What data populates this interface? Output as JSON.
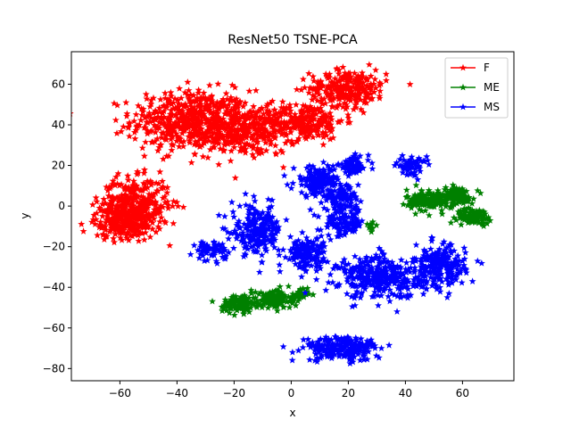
{
  "chart_data": {
    "type": "scatter",
    "title": "ResNet50 TSNE-PCA",
    "xlabel": "x",
    "ylabel": "y",
    "xlim": [
      -77,
      78
    ],
    "ylim": [
      -86,
      76
    ],
    "xticks": [
      -60,
      -40,
      -20,
      0,
      20,
      40,
      60
    ],
    "yticks": [
      -80,
      -60,
      -40,
      -20,
      0,
      20,
      40,
      60
    ],
    "grid": false,
    "legend_position": "top-right",
    "marker": "star",
    "series": [
      {
        "name": "F",
        "color": "#ff0000",
        "clusters": [
          {
            "cx": -35,
            "cy": 42,
            "sx": 14,
            "sy": 10,
            "n": 520
          },
          {
            "cx": -15,
            "cy": 37,
            "sx": 12,
            "sy": 8,
            "n": 320
          },
          {
            "cx": 5,
            "cy": 42,
            "sx": 9,
            "sy": 6,
            "n": 200
          },
          {
            "cx": 20,
            "cy": 58,
            "sx": 9,
            "sy": 6,
            "n": 260
          },
          {
            "cx": -55,
            "cy": 0,
            "sx": 8,
            "sy": 9,
            "n": 380
          },
          {
            "cx": -60,
            "cy": -8,
            "sx": 6,
            "sy": 5,
            "n": 160
          }
        ]
      },
      {
        "name": "ME",
        "color": "#008000",
        "clusters": [
          {
            "cx": 48,
            "cy": 3,
            "sx": 5,
            "sy": 3.5,
            "n": 160
          },
          {
            "cx": 58,
            "cy": 5,
            "sx": 4,
            "sy": 3,
            "n": 120
          },
          {
            "cx": 64,
            "cy": -5,
            "sx": 4,
            "sy": 2.5,
            "n": 100
          },
          {
            "cx": -18,
            "cy": -48,
            "sx": 4,
            "sy": 3,
            "n": 120
          },
          {
            "cx": -6,
            "cy": -46,
            "sx": 4,
            "sy": 3,
            "n": 120
          },
          {
            "cx": 2,
            "cy": -44,
            "sx": 2.5,
            "sy": 2.5,
            "n": 40
          },
          {
            "cx": 28,
            "cy": -10,
            "sx": 1.5,
            "sy": 1.5,
            "n": 12
          }
        ]
      },
      {
        "name": "MS",
        "color": "#0000ff",
        "clusters": [
          {
            "cx": 10,
            "cy": 12,
            "sx": 6,
            "sy": 5,
            "n": 180
          },
          {
            "cx": 22,
            "cy": 20,
            "sx": 3.5,
            "sy": 3,
            "n": 70
          },
          {
            "cx": 42,
            "cy": 20,
            "sx": 3.5,
            "sy": 3,
            "n": 60
          },
          {
            "cx": 18,
            "cy": 4,
            "sx": 4,
            "sy": 3,
            "n": 80
          },
          {
            "cx": 18,
            "cy": -8,
            "sx": 5,
            "sy": 5,
            "n": 120
          },
          {
            "cx": -12,
            "cy": -12,
            "sx": 6,
            "sy": 8,
            "n": 220
          },
          {
            "cx": -28,
            "cy": -22,
            "sx": 3.5,
            "sy": 3,
            "n": 60
          },
          {
            "cx": 5,
            "cy": -23,
            "sx": 5,
            "sy": 5,
            "n": 150
          },
          {
            "cx": 32,
            "cy": -35,
            "sx": 10,
            "sy": 7,
            "n": 350
          },
          {
            "cx": 52,
            "cy": -30,
            "sx": 6,
            "sy": 7,
            "n": 200
          },
          {
            "cx": 18,
            "cy": -70,
            "sx": 9,
            "sy": 4,
            "n": 220
          }
        ]
      }
    ]
  }
}
